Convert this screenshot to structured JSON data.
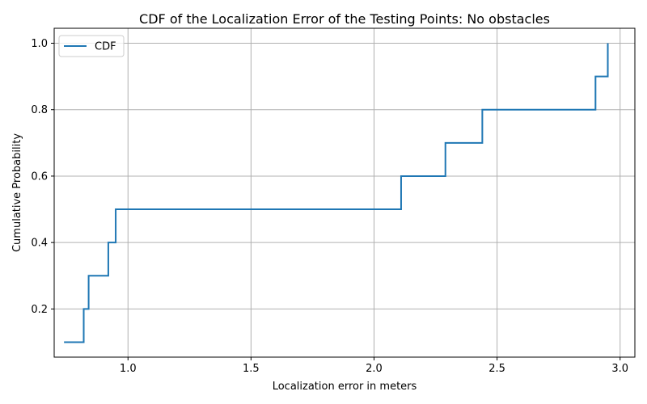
{
  "chart_data": {
    "type": "line",
    "step": "post",
    "title": "CDF of the Localization Error of the Testing Points: No obstacles",
    "xlabel": "Localization error in meters",
    "ylabel": "Cumulative Probability",
    "xlim": [
      0.7,
      3.06
    ],
    "ylim": [
      0.055,
      1.045
    ],
    "grid": true,
    "legend_position": "top-left",
    "x_ticks": [
      1.0,
      1.5,
      2.0,
      2.5,
      3.0
    ],
    "x_tick_labels": [
      "1.0",
      "1.5",
      "2.0",
      "2.5",
      "3.0"
    ],
    "y_ticks": [
      0.2,
      0.4,
      0.6,
      0.8,
      1.0
    ],
    "y_tick_labels": [
      "0.2",
      "0.4",
      "0.6",
      "0.8",
      "1.0"
    ],
    "series": [
      {
        "name": "CDF",
        "color": "#1f77b4",
        "x": [
          0.74,
          0.82,
          0.84,
          0.92,
          0.95,
          2.11,
          2.29,
          2.44,
          2.9,
          2.95
        ],
        "y": [
          0.1,
          0.2,
          0.3,
          0.4,
          0.5,
          0.6,
          0.7,
          0.8,
          0.9,
          1.0
        ]
      }
    ]
  }
}
